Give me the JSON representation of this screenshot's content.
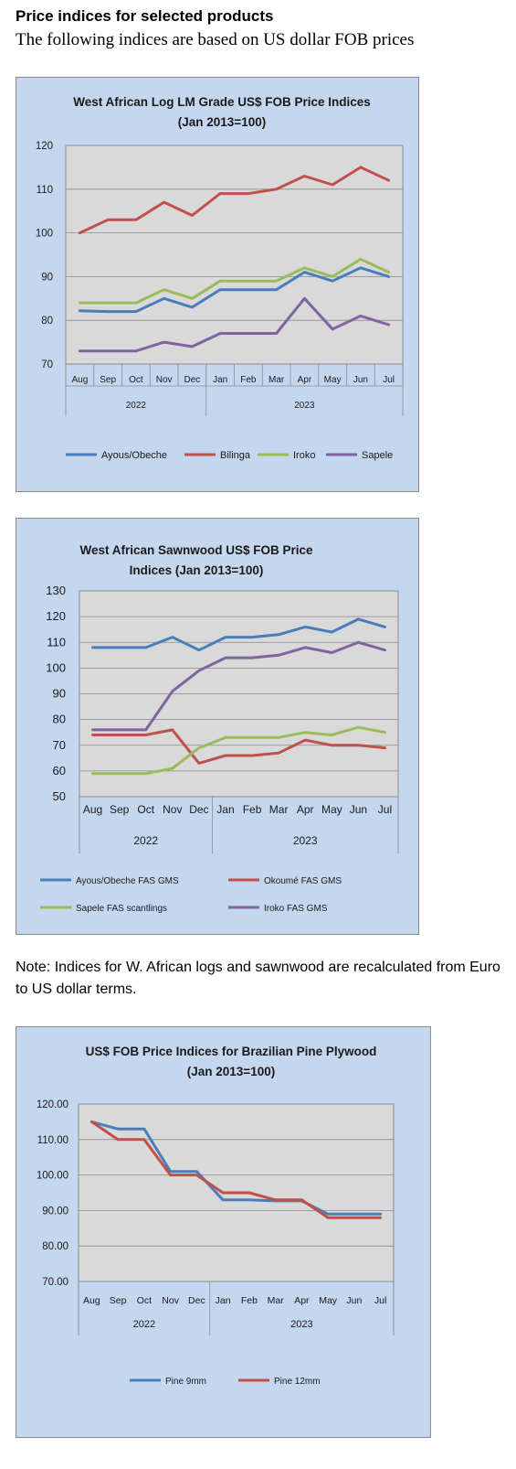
{
  "page": {
    "heading": "Price indices for selected products",
    "subheading": "The following indices are based on US dollar FOB prices",
    "note": "Note: Indices for W. African logs and sawnwood are recalculated from Euro to US dollar terms."
  },
  "chart_data": [
    {
      "type": "line",
      "title": [
        "West African Log LM Grade US$ FOB Price Indices",
        "(Jan 2013=100)"
      ],
      "categories": [
        "Aug",
        "Sep",
        "Oct",
        "Nov",
        "Dec",
        "Jan",
        "Feb",
        "Mar",
        "Apr",
        "May",
        "Jun",
        "Jul"
      ],
      "years": [
        {
          "label": "2022",
          "from": 0,
          "to": 4
        },
        {
          "label": "2023",
          "from": 5,
          "to": 11
        }
      ],
      "ylim": [
        70,
        120
      ],
      "yticks": [
        70,
        80,
        90,
        100,
        110,
        120
      ],
      "ytick_labels": [
        "70",
        "80",
        "90",
        "100",
        "110",
        "120"
      ],
      "legend_position": "bottom",
      "series": [
        {
          "name": "Ayous/Obeche",
          "color": "#4a7ebb",
          "values": [
            82.2,
            82,
            82,
            85,
            83,
            87,
            87,
            87,
            91,
            89,
            92,
            90
          ]
        },
        {
          "name": "Bilinga",
          "color": "#c0504d",
          "values": [
            100,
            103,
            103,
            107,
            104,
            109,
            109,
            110,
            113,
            111,
            115,
            112
          ]
        },
        {
          "name": "Iroko",
          "color": "#9bbb59",
          "values": [
            84,
            84,
            84,
            87,
            85,
            89,
            89,
            89,
            92,
            90,
            94,
            91
          ]
        },
        {
          "name": "Sapele",
          "color": "#8064a2",
          "values": [
            73,
            73,
            73,
            75,
            74,
            77,
            77,
            77,
            85,
            78,
            81,
            79
          ]
        }
      ]
    },
    {
      "type": "line",
      "title": [
        "West African Sawnwood US$ FOB Price",
        "Indices (Jan 2013=100)"
      ],
      "categories": [
        "Aug",
        "Sep",
        "Oct",
        "Nov",
        "Dec",
        "Jan",
        "Feb",
        "Mar",
        "Apr",
        "May",
        "Jun",
        "Jul"
      ],
      "years": [
        {
          "label": "2022",
          "from": 0,
          "to": 4
        },
        {
          "label": "2023",
          "from": 5,
          "to": 11
        }
      ],
      "ylim": [
        50,
        130
      ],
      "yticks": [
        50,
        60,
        70,
        80,
        90,
        100,
        110,
        120,
        130
      ],
      "ytick_labels": [
        "50",
        "60",
        "70",
        "80",
        "90",
        "100",
        "110",
        "120",
        "130"
      ],
      "legend_position": "bottom",
      "series": [
        {
          "name": "Ayous/Obeche  FAS GMS",
          "color": "#4a7ebb",
          "values": [
            108,
            108,
            108,
            112,
            107,
            112,
            112,
            113,
            116,
            114,
            119,
            116
          ]
        },
        {
          "name": "Okoumé  FAS GMS",
          "color": "#c0504d",
          "values": [
            74,
            74,
            74,
            76,
            63,
            66,
            66,
            67,
            72,
            70,
            70,
            69
          ]
        },
        {
          "name": "Sapele FAS scantlings",
          "color": "#9bbb59",
          "values": [
            59,
            59,
            59,
            61,
            69,
            73,
            73,
            73,
            75,
            74,
            77,
            75
          ]
        },
        {
          "name": "Iroko FAS GMS",
          "color": "#8064a2",
          "values": [
            76,
            76,
            76,
            91,
            99,
            104,
            104,
            105,
            108,
            106,
            110,
            107
          ]
        }
      ]
    },
    {
      "type": "line",
      "title": [
        "US$ FOB Price Indices for Brazilian  Pine Plywood",
        "(Jan 2013=100)"
      ],
      "categories": [
        "Aug",
        "Sep",
        "Oct",
        "Nov",
        "Dec",
        "Jan",
        "Feb",
        "Mar",
        "Apr",
        "May",
        "Jun",
        "Jul"
      ],
      "years": [
        {
          "label": "2022",
          "from": 0,
          "to": 4
        },
        {
          "label": "2023",
          "from": 5,
          "to": 11
        }
      ],
      "ylim": [
        70,
        120
      ],
      "yticks": [
        70,
        80,
        90,
        100,
        110,
        120
      ],
      "ytick_labels": [
        "70.00",
        "80.00",
        "90.00",
        "100.00",
        "110.00",
        "120.00"
      ],
      "legend_position": "bottom",
      "series": [
        {
          "name": "Pine 9mm",
          "color": "#4a7ebb",
          "values": [
            115,
            113,
            113,
            101,
            101,
            93,
            93,
            92.7,
            92.7,
            89,
            89,
            89
          ]
        },
        {
          "name": "Pine 12mm",
          "color": "#c0504d",
          "values": [
            115,
            110,
            110,
            100,
            100,
            95,
            95,
            93,
            93,
            88,
            88,
            88
          ]
        }
      ]
    }
  ]
}
